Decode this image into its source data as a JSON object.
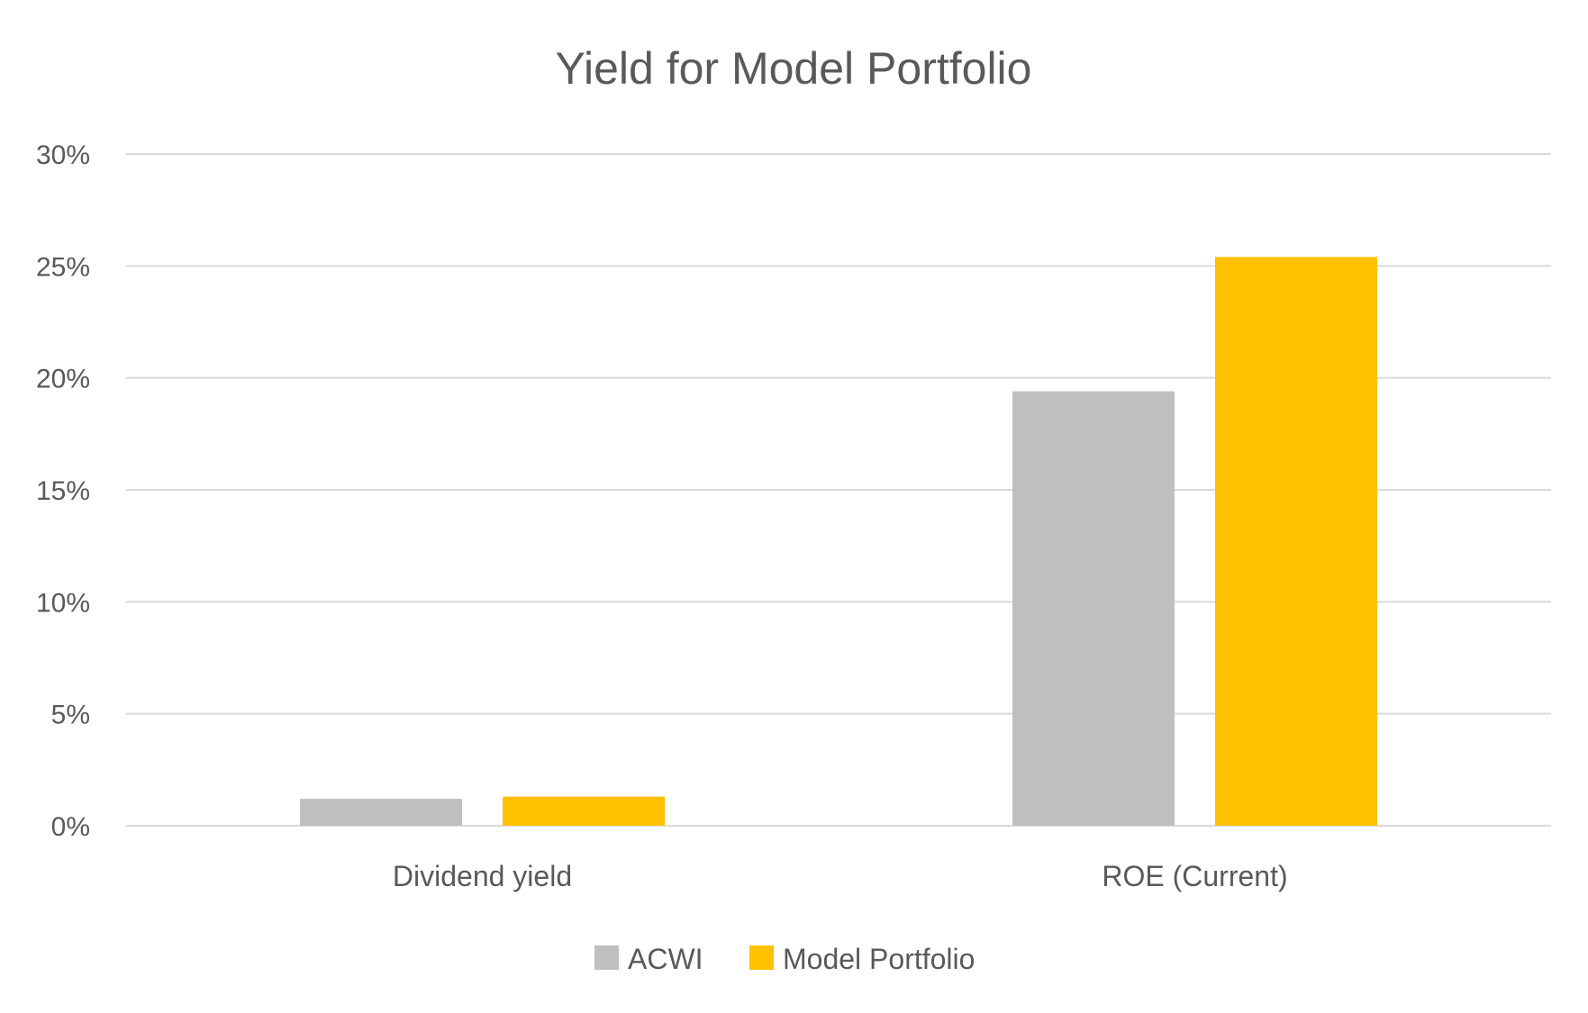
{
  "chart_data": {
    "type": "bar",
    "title": "Yield for Model Portfolio",
    "xlabel": "",
    "ylabel": "",
    "categories": [
      "Dividend yield",
      "ROE (Current)"
    ],
    "series": [
      {
        "name": "ACWI",
        "values": [
          0.012,
          0.194
        ],
        "color": "#bfbfbf"
      },
      {
        "name": "Model Portfolio",
        "values": [
          0.013,
          0.254
        ],
        "color": "#ffc000"
      }
    ],
    "ylim": [
      0,
      0.3
    ],
    "yticks": [
      0,
      0.05,
      0.1,
      0.15,
      0.2,
      0.25,
      0.3
    ],
    "ytick_labels": [
      "0%",
      "5%",
      "10%",
      "15%",
      "20%",
      "25%",
      "30%"
    ],
    "grid": true,
    "legend": "bottom-center"
  }
}
